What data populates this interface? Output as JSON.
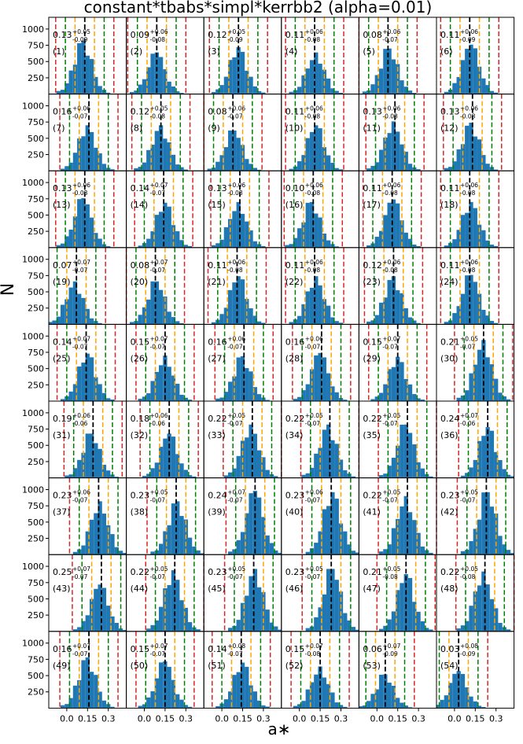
{
  "figure": {
    "title": "constant*tbabs*simpl*kerrbb2 (alpha=0.01)",
    "ylabel": "N",
    "xlabel": "a∗",
    "grid": false
  },
  "colors": {
    "bar": "#1f77b4",
    "median_line": "#000000",
    "one_sigma_line": "#ffa500",
    "two_sigma_line": "#008000",
    "three_sigma_line": "#d62728",
    "axes": "#000000"
  },
  "axes_common": {
    "xlim": [
      -0.13,
      0.43
    ],
    "ylim": [
      0,
      1180
    ],
    "xticks": [
      0.0,
      0.15,
      0.3
    ],
    "xtick_labels": [
      "0.0",
      "0.15",
      "0.3"
    ],
    "yticks": [
      250,
      500,
      750,
      1000
    ],
    "ytick_labels": [
      "250",
      "500",
      "750",
      "1000"
    ],
    "bar_bin_width": 0.03
  },
  "chart_data": {
    "type": "bar",
    "title": "constant*tbabs*simpl*kerrbb2 (alpha=0.01)",
    "xlabel": "a∗",
    "ylabel": "N",
    "xlim": [
      -0.13,
      0.43
    ],
    "ylim": [
      0,
      1180
    ],
    "panels": [
      {
        "id": "(1)",
        "median": 0.13,
        "plus": "+0.05",
        "minus": "-0.09",
        "value_label": "0.13",
        "peak": 820
      },
      {
        "id": "(2)",
        "median": 0.09,
        "plus": "+0.06",
        "minus": "-0.08",
        "value_label": "0.09",
        "peak": 640
      },
      {
        "id": "(3)",
        "median": 0.12,
        "plus": "+0.05",
        "minus": "-0.09",
        "value_label": "0.12",
        "peak": 720
      },
      {
        "id": "(4)",
        "median": 0.11,
        "plus": "+0.06",
        "minus": "-0.08",
        "value_label": "0.11",
        "peak": 640
      },
      {
        "id": "(5)",
        "median": 0.08,
        "plus": "+0.06",
        "minus": "-0.07",
        "value_label": "0.08",
        "peak": 700
      },
      {
        "id": "(6)",
        "median": 0.11,
        "plus": "+0.06",
        "minus": "-0.09",
        "value_label": "0.11",
        "peak": 760
      },
      {
        "id": "(7)",
        "median": 0.16,
        "plus": "+0.06",
        "minus": "-0.07",
        "value_label": "0.16",
        "peak": 700
      },
      {
        "id": "(8)",
        "median": 0.12,
        "plus": "+0.05",
        "minus": "-0.08",
        "value_label": "0.12",
        "peak": 700
      },
      {
        "id": "(9)",
        "median": 0.08,
        "plus": "+0.06",
        "minus": "-0.07",
        "value_label": "0.08",
        "peak": 620
      },
      {
        "id": "(10)",
        "median": 0.11,
        "plus": "+0.06",
        "minus": "-0.08",
        "value_label": "0.11",
        "peak": 700
      },
      {
        "id": "(11)",
        "median": 0.13,
        "plus": "+0.06",
        "minus": "-0.08",
        "value_label": "0.13",
        "peak": 760
      },
      {
        "id": "(12)",
        "median": 0.13,
        "plus": "+0.06",
        "minus": "-0.08",
        "value_label": "0.13",
        "peak": 740
      },
      {
        "id": "(13)",
        "median": 0.13,
        "plus": "+0.06",
        "minus": "-0.08",
        "value_label": "0.13",
        "peak": 760
      },
      {
        "id": "(14)",
        "median": 0.14,
        "plus": "+0.07",
        "minus": "-0.07",
        "value_label": "0.14",
        "peak": 690
      },
      {
        "id": "(15)",
        "median": 0.13,
        "plus": "+0.06",
        "minus": "-0.08",
        "value_label": "0.13",
        "peak": 700
      },
      {
        "id": "(16)",
        "median": 0.1,
        "plus": "+0.06",
        "minus": "-0.08",
        "value_label": "0.10",
        "peak": 700
      },
      {
        "id": "(17)",
        "median": 0.11,
        "plus": "+0.06",
        "minus": "-0.08",
        "value_label": "0.11",
        "peak": 740
      },
      {
        "id": "(18)",
        "median": 0.11,
        "plus": "+0.06",
        "minus": "-0.08",
        "value_label": "0.11",
        "peak": 700
      },
      {
        "id": "(19)",
        "median": 0.07,
        "plus": "+0.07",
        "minus": "-0.07",
        "value_label": "0.07",
        "peak": 660
      },
      {
        "id": "(20)",
        "median": 0.08,
        "plus": "+0.07",
        "minus": "-0.07",
        "value_label": "0.08",
        "peak": 660
      },
      {
        "id": "(21)",
        "median": 0.11,
        "plus": "+0.06",
        "minus": "-0.08",
        "value_label": "0.11",
        "peak": 740
      },
      {
        "id": "(22)",
        "median": 0.11,
        "plus": "+0.06",
        "minus": "-0.08",
        "value_label": "0.11",
        "peak": 740
      },
      {
        "id": "(23)",
        "median": 0.12,
        "plus": "+0.06",
        "minus": "-0.08",
        "value_label": "0.12",
        "peak": 740
      },
      {
        "id": "(24)",
        "median": 0.11,
        "plus": "+0.06",
        "minus": "-0.08",
        "value_label": "0.11",
        "peak": 760
      },
      {
        "id": "(25)",
        "median": 0.14,
        "plus": "+0.07",
        "minus": "-0.07",
        "value_label": "0.14",
        "peak": 730
      },
      {
        "id": "(26)",
        "median": 0.15,
        "plus": "+0.07",
        "minus": "-0.07",
        "value_label": "0.15",
        "peak": 700
      },
      {
        "id": "(27)",
        "median": 0.16,
        "plus": "+0.06",
        "minus": "-0.07",
        "value_label": "0.16",
        "peak": 690
      },
      {
        "id": "(28)",
        "median": 0.16,
        "plus": "+0.06",
        "minus": "-0.07",
        "value_label": "0.16",
        "peak": 740
      },
      {
        "id": "(29)",
        "median": 0.15,
        "plus": "+0.07",
        "minus": "-0.07",
        "value_label": "0.15",
        "peak": 680
      },
      {
        "id": "(30)",
        "median": 0.21,
        "plus": "+0.05",
        "minus": "-0.07",
        "value_label": "0.21",
        "peak": 940
      },
      {
        "id": "(31)",
        "median": 0.19,
        "plus": "+0.06",
        "minus": "-0.06",
        "value_label": "0.19",
        "peak": 680
      },
      {
        "id": "(32)",
        "median": 0.18,
        "plus": "+0.06",
        "minus": "-0.06",
        "value_label": "0.18",
        "peak": 680
      },
      {
        "id": "(33)",
        "median": 0.22,
        "plus": "+0.05",
        "minus": "-0.07",
        "value_label": "0.22",
        "peak": 820
      },
      {
        "id": "(34)",
        "median": 0.22,
        "plus": "+0.05",
        "minus": "-0.07",
        "value_label": "0.22",
        "peak": 820
      },
      {
        "id": "(35)",
        "median": 0.22,
        "plus": "+0.05",
        "minus": "-0.07",
        "value_label": "0.22",
        "peak": 820
      },
      {
        "id": "(36)",
        "median": 0.24,
        "plus": "+0.07",
        "minus": "-0.06",
        "value_label": "0.24",
        "peak": 780
      },
      {
        "id": "(37)",
        "median": 0.23,
        "plus": "+0.06",
        "minus": "-0.07",
        "value_label": "0.23",
        "peak": 820
      },
      {
        "id": "(38)",
        "median": 0.23,
        "plus": "+0.05",
        "minus": "-0.07",
        "value_label": "0.23",
        "peak": 820
      },
      {
        "id": "(39)",
        "median": 0.24,
        "plus": "+0.07",
        "minus": "-0.07",
        "value_label": "0.24",
        "peak": 980
      },
      {
        "id": "(40)",
        "median": 0.23,
        "plus": "+0.06",
        "minus": "-0.07",
        "value_label": "0.23",
        "peak": 960
      },
      {
        "id": "(41)",
        "median": 0.22,
        "plus": "+0.05",
        "minus": "-0.07",
        "value_label": "0.22",
        "peak": 900
      },
      {
        "id": "(42)",
        "median": 0.23,
        "plus": "+0.05",
        "minus": "-0.07",
        "value_label": "0.23",
        "peak": 960
      },
      {
        "id": "(43)",
        "median": 0.25,
        "plus": "+0.07",
        "minus": "-0.07",
        "value_label": "0.25",
        "peak": 720
      },
      {
        "id": "(44)",
        "median": 0.22,
        "plus": "+0.05",
        "minus": "-0.07",
        "value_label": "0.22",
        "peak": 940
      },
      {
        "id": "(45)",
        "median": 0.23,
        "plus": "+0.05",
        "minus": "-0.07",
        "value_label": "0.23",
        "peak": 960
      },
      {
        "id": "(46)",
        "median": 0.23,
        "plus": "+0.05",
        "minus": "-0.07",
        "value_label": "0.23",
        "peak": 960
      },
      {
        "id": "(47)",
        "median": 0.21,
        "plus": "+0.05",
        "minus": "-0.08",
        "value_label": "0.21",
        "peak": 880
      },
      {
        "id": "(48)",
        "median": 0.22,
        "plus": "+0.05",
        "minus": "-0.08",
        "value_label": "0.22",
        "peak": 920
      },
      {
        "id": "(49)",
        "median": 0.16,
        "plus": "+0.07",
        "minus": "-0.07",
        "value_label": "0.16",
        "peak": 780
      },
      {
        "id": "(50)",
        "median": 0.15,
        "plus": "+0.07",
        "minus": "-0.07",
        "value_label": "0.15",
        "peak": 720
      },
      {
        "id": "(51)",
        "median": 0.14,
        "plus": "+0.08",
        "minus": "-0.07",
        "value_label": "0.14",
        "peak": 700
      },
      {
        "id": "(52)",
        "median": 0.15,
        "plus": "+0.07",
        "minus": "-0.08",
        "value_label": "0.15",
        "peak": 640
      },
      {
        "id": "(53)",
        "median": 0.06,
        "plus": "+0.07",
        "minus": "-0.09",
        "value_label": "0.06",
        "peak": 520
      },
      {
        "id": "(54)",
        "median": 0.03,
        "plus": "+0.08",
        "minus": "-0.09",
        "value_label": "0.03",
        "peak": 570
      }
    ]
  }
}
